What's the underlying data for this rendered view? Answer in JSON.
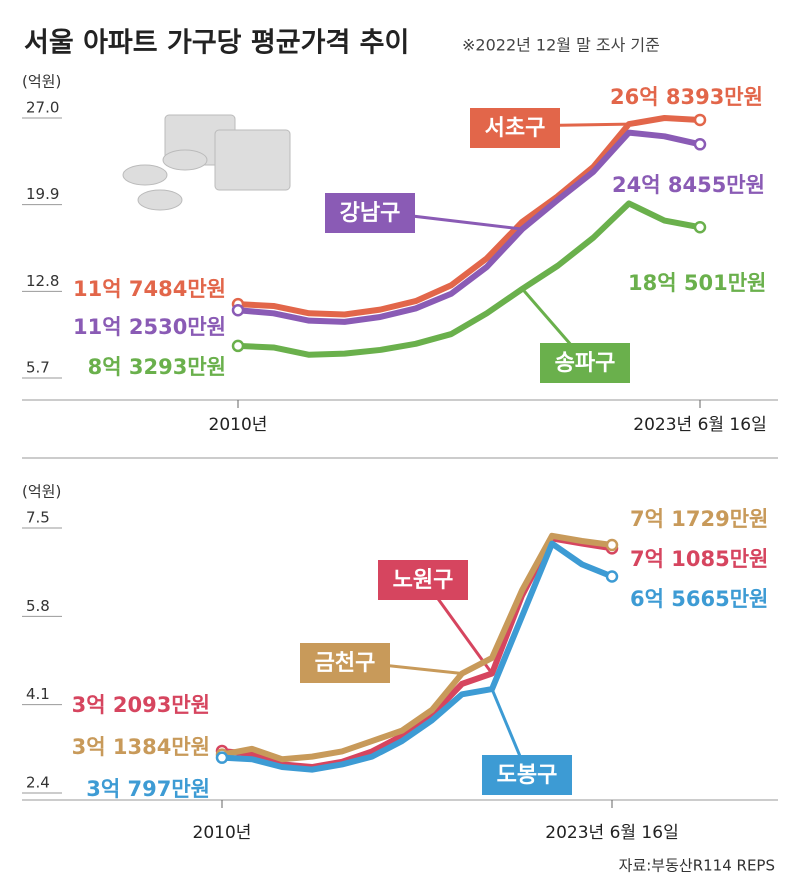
{
  "chart_data": [
    {
      "type": "line",
      "title": "서울 아파트 가구당 평균가격 추이",
      "subtitle": "※2022년 12월 말 조사 기준",
      "y_label": "(억원)",
      "categories": [
        "2010년",
        null,
        null,
        null,
        null,
        null,
        null,
        null,
        null,
        null,
        null,
        null,
        null,
        "2023년 6월 16일"
      ],
      "ylim": [
        5.7,
        27.0
      ],
      "yticks": [
        5.7,
        12.8,
        19.9,
        {
          "value": 27,
          "label": "27.0"
        }
      ],
      "series": [
        {
          "name": "서초구",
          "color": "#e2664a",
          "values": [
            11.7484,
            11.6,
            11.0,
            10.9,
            11.3,
            12.0,
            13.3,
            15.5,
            18.5,
            20.6,
            23.0,
            26.5,
            27.0,
            26.8393
          ],
          "value_labels": [
            "11억 7484만원",
            null,
            null,
            null,
            null,
            null,
            null,
            null,
            null,
            null,
            null,
            null,
            null,
            "26억 8393만원"
          ]
        },
        {
          "name": "강남구",
          "color": "#8a5bb5",
          "values": [
            11.253,
            11.0,
            10.4,
            10.3,
            10.7,
            11.4,
            12.6,
            14.8,
            17.9,
            20.3,
            22.6,
            25.8,
            25.5,
            24.8455
          ],
          "value_labels": [
            "11억 2530만원",
            null,
            null,
            null,
            null,
            null,
            null,
            null,
            null,
            null,
            null,
            null,
            null,
            "24억 8455만원"
          ]
        },
        {
          "name": "송파구",
          "color": "#6ab04c",
          "values": [
            8.3293,
            8.2,
            7.6,
            7.7,
            8.0,
            8.5,
            9.3,
            11.0,
            13.0,
            14.9,
            17.2,
            20.0,
            18.6,
            18.0501
          ],
          "value_labels": [
            "8억 3293만원",
            null,
            null,
            null,
            null,
            null,
            null,
            null,
            null,
            null,
            null,
            null,
            null,
            "18억 501만원"
          ]
        }
      ]
    },
    {
      "type": "line",
      "y_label": "(억원)",
      "source": "자료:부동산R114 REPS",
      "categories": [
        "2010년",
        null,
        null,
        null,
        null,
        null,
        null,
        null,
        null,
        null,
        null,
        null,
        null,
        "2023년 6월 16일"
      ],
      "ylim": [
        2.4,
        7.5
      ],
      "yticks": [
        2.4,
        4.1,
        5.8,
        7.5
      ],
      "series": [
        {
          "name": "노원구",
          "color": "#d6455f",
          "values": [
            3.2093,
            3.15,
            2.95,
            2.9,
            3.0,
            3.2,
            3.5,
            3.9,
            4.5,
            4.7,
            6.2,
            7.3,
            7.2,
            7.1085
          ],
          "value_labels": [
            "3억 2093만원",
            null,
            null,
            null,
            null,
            null,
            null,
            null,
            null,
            null,
            null,
            null,
            null,
            "7억 1085만원"
          ]
        },
        {
          "name": "금천구",
          "color": "#c89a5a",
          "values": [
            3.1384,
            3.25,
            3.05,
            3.1,
            3.2,
            3.4,
            3.6,
            4.0,
            4.7,
            5.0,
            6.3,
            7.35,
            7.25,
            7.1729
          ],
          "value_labels": [
            "3억 1384만원",
            null,
            null,
            null,
            null,
            null,
            null,
            null,
            null,
            null,
            null,
            null,
            null,
            "7억 1729만원"
          ]
        },
        {
          "name": "도봉구",
          "color": "#3d9bd4",
          "values": [
            3.0797,
            3.05,
            2.9,
            2.85,
            2.95,
            3.1,
            3.4,
            3.8,
            4.3,
            4.4,
            5.8,
            7.2,
            6.8,
            6.5665
          ],
          "value_labels": [
            "3억 797만원",
            null,
            null,
            null,
            null,
            null,
            null,
            null,
            null,
            null,
            null,
            null,
            null,
            "6억 5665만원"
          ]
        }
      ]
    }
  ]
}
